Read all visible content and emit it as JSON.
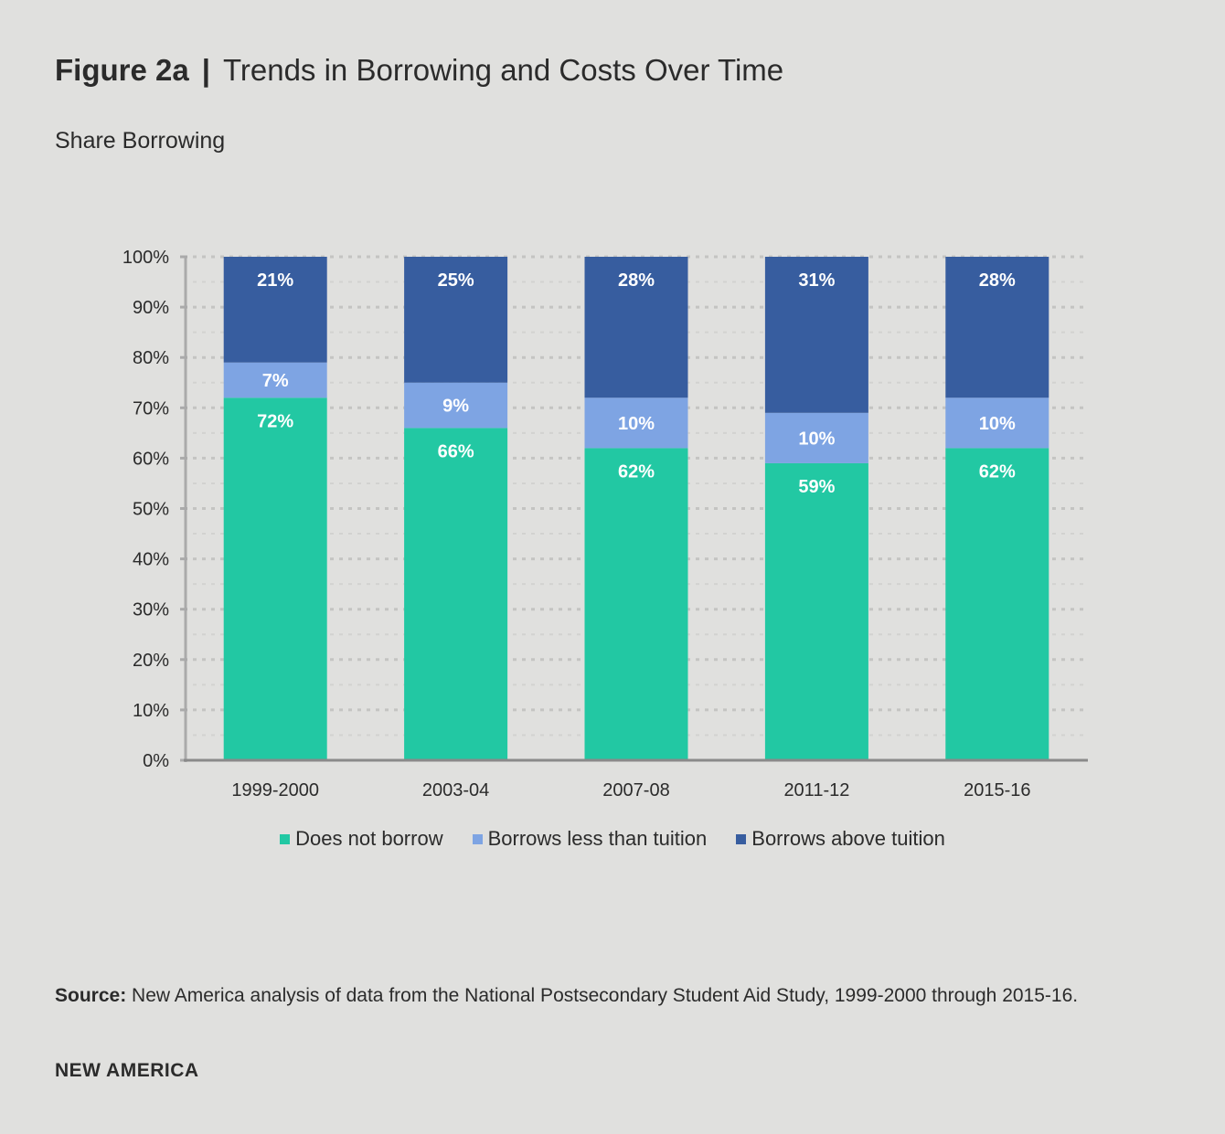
{
  "header": {
    "figure_label": "Figure 2a",
    "separator": "|",
    "title": "Trends in Borrowing and Costs Over Time",
    "subtitle": "Share Borrowing"
  },
  "chart_data": {
    "type": "bar",
    "stacked": true,
    "categories": [
      "1999-2000",
      "2003-04",
      "2007-08",
      "2011-12",
      "2015-16"
    ],
    "series": [
      {
        "name": "Does not borrow",
        "values": [
          72,
          66,
          62,
          59,
          62
        ],
        "color": "#22c8a3"
      },
      {
        "name": "Borrows less than tuition",
        "values": [
          7,
          9,
          10,
          10,
          10
        ],
        "color": "#7ea4e3"
      },
      {
        "name": "Borrows above tuition",
        "values": [
          21,
          25,
          28,
          31,
          28
        ],
        "color": "#375d9f"
      }
    ],
    "ylim": [
      0,
      100
    ],
    "yticks": [
      "0%",
      "10%",
      "20%",
      "30%",
      "40%",
      "50%",
      "60%",
      "70%",
      "80%",
      "90%",
      "100%"
    ],
    "grid": true,
    "legend_position": "bottom"
  },
  "footer": {
    "source_label": "Source:",
    "source_text": " New America analysis of data from the National Postsecondary Student Aid Study, 1999-2000 through 2015-16.",
    "brand": "NEW AMERICA"
  }
}
